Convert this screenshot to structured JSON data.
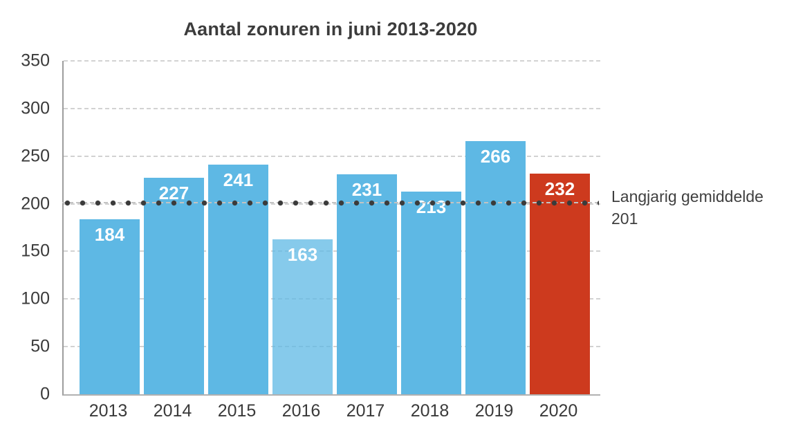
{
  "chart_data": {
    "type": "bar",
    "title": "Aantal zonuren in juni 2013-2020",
    "categories": [
      "2013",
      "2014",
      "2015",
      "2016",
      "2017",
      "2018",
      "2019",
      "2020"
    ],
    "values": [
      184,
      227,
      241,
      163,
      231,
      213,
      266,
      232
    ],
    "bar_roles": [
      "default",
      "default",
      "default",
      "translucent",
      "default",
      "default",
      "default",
      "accent"
    ],
    "xlabel": "",
    "ylabel": "",
    "ylim": [
      0,
      350
    ],
    "yticks": [
      0,
      50,
      100,
      150,
      200,
      250,
      300,
      350
    ],
    "grid": "horizontal-dashed",
    "legend_position": "none",
    "average_line": {
      "value": 201,
      "label": "Langjarig gemiddelde 201"
    }
  },
  "colors": {
    "bar_default": "#5eb8e4",
    "bar_translucent": "rgba(94, 184, 228, 0.75)",
    "bar_accent": "#cd3a1e",
    "value_label": "#ffffff",
    "title_text": "#3c3c3c",
    "axis_text": "#3a3a3a",
    "gridline": "#d2d2d2",
    "average_dot": "#3b3b3b"
  }
}
